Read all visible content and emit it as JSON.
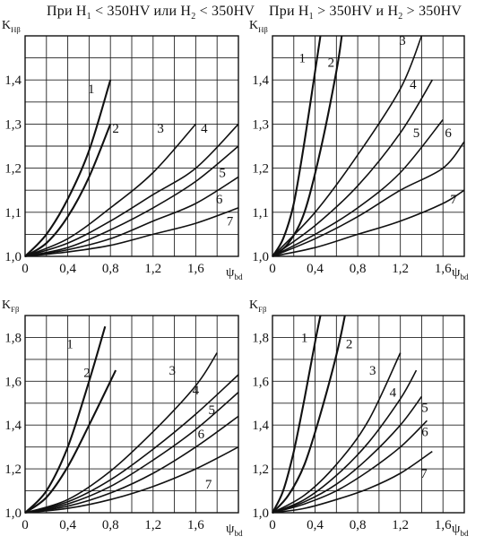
{
  "headers": {
    "left": {
      "pre": "При H",
      "s1": "1",
      "mid": " < 350HV или H",
      "s2": "2",
      "post": " < 350HV"
    },
    "right": {
      "pre": "При H",
      "s1": "1",
      "mid": " > 350HV и H",
      "s2": "2",
      "post": " > 350HV"
    }
  },
  "chart_data": [
    {
      "type": "line",
      "ylabel": {
        "main": "K",
        "sub": "Hβ"
      },
      "xlabel": {
        "main": "ψ",
        "sub": "bd"
      },
      "xlim": [
        0,
        2.0
      ],
      "ylim": [
        1.0,
        1.5
      ],
      "xticks": [
        0,
        0.4,
        0.8,
        1.2,
        1.6
      ],
      "xtick_labels": [
        "0",
        "0,4",
        "0,8",
        "1,2",
        "1,6"
      ],
      "yticks": [
        1.0,
        1.1,
        1.2,
        1.3,
        1.4
      ],
      "ytick_labels": [
        "1,0",
        "1,1",
        "1,2",
        "1,3",
        "1,4"
      ],
      "grid": true,
      "series": [
        {
          "name": "1",
          "points": [
            [
              0,
              1.0
            ],
            [
              0.2,
              1.05
            ],
            [
              0.4,
              1.13
            ],
            [
              0.6,
              1.24
            ],
            [
              0.8,
              1.4
            ]
          ]
        },
        {
          "name": "2",
          "points": [
            [
              0,
              1.0
            ],
            [
              0.2,
              1.03
            ],
            [
              0.4,
              1.09
            ],
            [
              0.6,
              1.18
            ],
            [
              0.8,
              1.3
            ]
          ]
        },
        {
          "name": "3",
          "points": [
            [
              0,
              1.0
            ],
            [
              0.4,
              1.04
            ],
            [
              0.8,
              1.11
            ],
            [
              1.2,
              1.19
            ],
            [
              1.6,
              1.3
            ]
          ]
        },
        {
          "name": "4",
          "points": [
            [
              0,
              1.0
            ],
            [
              0.4,
              1.03
            ],
            [
              0.8,
              1.08
            ],
            [
              1.2,
              1.14
            ],
            [
              1.6,
              1.2
            ],
            [
              2.0,
              1.3
            ]
          ]
        },
        {
          "name": "5",
          "points": [
            [
              0,
              1.0
            ],
            [
              0.4,
              1.02
            ],
            [
              0.8,
              1.06
            ],
            [
              1.2,
              1.11
            ],
            [
              1.6,
              1.17
            ],
            [
              2.0,
              1.25
            ]
          ]
        },
        {
          "name": "6",
          "points": [
            [
              0,
              1.0
            ],
            [
              0.4,
              1.015
            ],
            [
              0.8,
              1.04
            ],
            [
              1.2,
              1.08
            ],
            [
              1.6,
              1.12
            ],
            [
              2.0,
              1.18
            ]
          ]
        },
        {
          "name": "7",
          "points": [
            [
              0,
              1.0
            ],
            [
              0.4,
              1.01
            ],
            [
              0.8,
              1.025
            ],
            [
              1.2,
              1.05
            ],
            [
              1.6,
              1.075
            ],
            [
              2.0,
              1.11
            ]
          ]
        }
      ],
      "curve_labels": [
        {
          "name": "1",
          "at": [
            0.62,
            1.37
          ]
        },
        {
          "name": "2",
          "at": [
            0.85,
            1.28
          ]
        },
        {
          "name": "3",
          "at": [
            1.27,
            1.28
          ]
        },
        {
          "name": "4",
          "at": [
            1.68,
            1.28
          ]
        },
        {
          "name": "5",
          "at": [
            1.85,
            1.18
          ]
        },
        {
          "name": "6",
          "at": [
            1.82,
            1.12
          ]
        },
        {
          "name": "7",
          "at": [
            1.92,
            1.07
          ]
        }
      ]
    },
    {
      "type": "line",
      "ylabel": {
        "main": "K",
        "sub": "Hβ"
      },
      "xlabel": {
        "main": "ψ",
        "sub": "bd"
      },
      "xlim": [
        0,
        1.8
      ],
      "ylim": [
        1.0,
        1.5
      ],
      "xticks": [
        0,
        0.4,
        0.8,
        1.2,
        1.6
      ],
      "xtick_labels": [
        "0",
        "0,4",
        "0,8",
        "1,2",
        "1,6"
      ],
      "yticks": [
        1.0,
        1.1,
        1.2,
        1.3,
        1.4
      ],
      "ytick_labels": [
        "1,0",
        "1,1",
        "1,2",
        "1,3",
        "1,4"
      ],
      "grid": true,
      "series": [
        {
          "name": "1",
          "points": [
            [
              0,
              1.0
            ],
            [
              0.1,
              1.04
            ],
            [
              0.2,
              1.12
            ],
            [
              0.3,
              1.26
            ],
            [
              0.4,
              1.42
            ],
            [
              0.45,
              1.5
            ]
          ]
        },
        {
          "name": "2",
          "points": [
            [
              0,
              1.0
            ],
            [
              0.15,
              1.03
            ],
            [
              0.3,
              1.1
            ],
            [
              0.45,
              1.24
            ],
            [
              0.6,
              1.42
            ],
            [
              0.65,
              1.5
            ]
          ]
        },
        {
          "name": "3",
          "points": [
            [
              0,
              1.0
            ],
            [
              0.4,
              1.1
            ],
            [
              0.8,
              1.23
            ],
            [
              1.2,
              1.38
            ],
            [
              1.4,
              1.5
            ]
          ]
        },
        {
          "name": "4",
          "points": [
            [
              0,
              1.0
            ],
            [
              0.4,
              1.07
            ],
            [
              0.8,
              1.16
            ],
            [
              1.2,
              1.28
            ],
            [
              1.5,
              1.4
            ]
          ]
        },
        {
          "name": "5",
          "points": [
            [
              0,
              1.0
            ],
            [
              0.4,
              1.05
            ],
            [
              0.8,
              1.11
            ],
            [
              1.2,
              1.19
            ],
            [
              1.6,
              1.31
            ]
          ]
        },
        {
          "name": "6",
          "points": [
            [
              0,
              1.0
            ],
            [
              0.4,
              1.04
            ],
            [
              0.8,
              1.09
            ],
            [
              1.2,
              1.15
            ],
            [
              1.6,
              1.2
            ],
            [
              1.8,
              1.26
            ]
          ]
        },
        {
          "name": "7",
          "points": [
            [
              0,
              1.0
            ],
            [
              0.4,
              1.02
            ],
            [
              0.8,
              1.05
            ],
            [
              1.2,
              1.08
            ],
            [
              1.6,
              1.12
            ],
            [
              1.8,
              1.15
            ]
          ]
        }
      ],
      "curve_labels": [
        {
          "name": "1",
          "at": [
            0.28,
            1.44
          ]
        },
        {
          "name": "2",
          "at": [
            0.55,
            1.43
          ]
        },
        {
          "name": "3",
          "at": [
            1.22,
            1.48
          ]
        },
        {
          "name": "4",
          "at": [
            1.32,
            1.38
          ]
        },
        {
          "name": "5",
          "at": [
            1.35,
            1.27
          ]
        },
        {
          "name": "6",
          "at": [
            1.65,
            1.27
          ]
        },
        {
          "name": "7",
          "at": [
            1.7,
            1.12
          ]
        }
      ]
    },
    {
      "type": "line",
      "ylabel": {
        "main": "K",
        "sub": "Fβ"
      },
      "xlabel": {
        "main": "ψ",
        "sub": "bd"
      },
      "xlim": [
        0,
        2.0
      ],
      "ylim": [
        1.0,
        1.9
      ],
      "xticks": [
        0,
        0.4,
        0.8,
        1.2,
        1.6
      ],
      "xtick_labels": [
        "0",
        "0,4",
        "0,8",
        "1,2",
        "1,6"
      ],
      "yticks": [
        1.0,
        1.2,
        1.4,
        1.6,
        1.8
      ],
      "ytick_labels": [
        "1,0",
        "1,2",
        "1,4",
        "1,6",
        "1,8"
      ],
      "grid": true,
      "series": [
        {
          "name": "1",
          "points": [
            [
              0,
              1.0
            ],
            [
              0.2,
              1.1
            ],
            [
              0.4,
              1.3
            ],
            [
              0.6,
              1.6
            ],
            [
              0.75,
              1.85
            ]
          ]
        },
        {
          "name": "2",
          "points": [
            [
              0,
              1.0
            ],
            [
              0.2,
              1.07
            ],
            [
              0.4,
              1.21
            ],
            [
              0.6,
              1.4
            ],
            [
              0.85,
              1.65
            ]
          ]
        },
        {
          "name": "3",
          "points": [
            [
              0,
              1.0
            ],
            [
              0.4,
              1.06
            ],
            [
              0.8,
              1.19
            ],
            [
              1.2,
              1.37
            ],
            [
              1.6,
              1.58
            ],
            [
              1.8,
              1.73
            ]
          ]
        },
        {
          "name": "4",
          "points": [
            [
              0,
              1.0
            ],
            [
              0.4,
              1.05
            ],
            [
              0.8,
              1.15
            ],
            [
              1.2,
              1.29
            ],
            [
              1.6,
              1.45
            ],
            [
              2.0,
              1.63
            ]
          ]
        },
        {
          "name": "5",
          "points": [
            [
              0,
              1.0
            ],
            [
              0.4,
              1.04
            ],
            [
              0.8,
              1.12
            ],
            [
              1.2,
              1.24
            ],
            [
              1.6,
              1.38
            ],
            [
              2.0,
              1.55
            ]
          ]
        },
        {
          "name": "6",
          "points": [
            [
              0,
              1.0
            ],
            [
              0.4,
              1.03
            ],
            [
              0.8,
              1.09
            ],
            [
              1.2,
              1.18
            ],
            [
              1.6,
              1.3
            ],
            [
              2.0,
              1.44
            ]
          ]
        },
        {
          "name": "7",
          "points": [
            [
              0,
              1.0
            ],
            [
              0.4,
              1.02
            ],
            [
              0.8,
              1.06
            ],
            [
              1.2,
              1.12
            ],
            [
              1.6,
              1.2
            ],
            [
              2.0,
              1.3
            ]
          ]
        }
      ],
      "curve_labels": [
        {
          "name": "1",
          "at": [
            0.42,
            1.75
          ]
        },
        {
          "name": "2",
          "at": [
            0.58,
            1.62
          ]
        },
        {
          "name": "3",
          "at": [
            1.38,
            1.63
          ]
        },
        {
          "name": "4",
          "at": [
            1.6,
            1.54
          ]
        },
        {
          "name": "5",
          "at": [
            1.75,
            1.45
          ]
        },
        {
          "name": "6",
          "at": [
            1.65,
            1.34
          ]
        },
        {
          "name": "7",
          "at": [
            1.72,
            1.11
          ]
        }
      ]
    },
    {
      "type": "line",
      "ylabel": {
        "main": "K",
        "sub": "Fβ"
      },
      "xlabel": {
        "main": "ψ",
        "sub": "bd"
      },
      "xlim": [
        0,
        1.8
      ],
      "ylim": [
        1.0,
        1.9
      ],
      "xticks": [
        0,
        0.4,
        0.8,
        1.2,
        1.6
      ],
      "xtick_labels": [
        "0",
        "0,4",
        "0,8",
        "1,2",
        "1,6"
      ],
      "yticks": [
        1.0,
        1.2,
        1.4,
        1.6,
        1.8
      ],
      "ytick_labels": [
        "1,0",
        "1,2",
        "1,4",
        "1,6",
        "1,8"
      ],
      "grid": true,
      "series": [
        {
          "name": "1",
          "points": [
            [
              0,
              1.0
            ],
            [
              0.1,
              1.1
            ],
            [
              0.2,
              1.28
            ],
            [
              0.3,
              1.52
            ],
            [
              0.4,
              1.78
            ],
            [
              0.45,
              1.9
            ]
          ]
        },
        {
          "name": "2",
          "points": [
            [
              0,
              1.0
            ],
            [
              0.15,
              1.08
            ],
            [
              0.3,
              1.22
            ],
            [
              0.45,
              1.45
            ],
            [
              0.6,
              1.72
            ],
            [
              0.68,
              1.9
            ]
          ]
        },
        {
          "name": "3",
          "points": [
            [
              0,
              1.0
            ],
            [
              0.3,
              1.08
            ],
            [
              0.6,
              1.22
            ],
            [
              0.9,
              1.42
            ],
            [
              1.2,
              1.73
            ]
          ]
        },
        {
          "name": "4",
          "points": [
            [
              0,
              1.0
            ],
            [
              0.3,
              1.06
            ],
            [
              0.6,
              1.17
            ],
            [
              0.9,
              1.32
            ],
            [
              1.2,
              1.52
            ],
            [
              1.35,
              1.65
            ]
          ]
        },
        {
          "name": "5",
          "points": [
            [
              0,
              1.0
            ],
            [
              0.3,
              1.05
            ],
            [
              0.6,
              1.13
            ],
            [
              0.9,
              1.25
            ],
            [
              1.2,
              1.4
            ],
            [
              1.4,
              1.53
            ]
          ]
        },
        {
          "name": "6",
          "points": [
            [
              0,
              1.0
            ],
            [
              0.3,
              1.04
            ],
            [
              0.6,
              1.1
            ],
            [
              0.9,
              1.19
            ],
            [
              1.2,
              1.3
            ],
            [
              1.45,
              1.42
            ]
          ]
        },
        {
          "name": "7",
          "points": [
            [
              0,
              1.0
            ],
            [
              0.3,
              1.02
            ],
            [
              0.6,
              1.06
            ],
            [
              0.9,
              1.11
            ],
            [
              1.2,
              1.18
            ],
            [
              1.5,
              1.28
            ]
          ]
        }
      ],
      "curve_labels": [
        {
          "name": "1",
          "at": [
            0.3,
            1.78
          ]
        },
        {
          "name": "2",
          "at": [
            0.72,
            1.75
          ]
        },
        {
          "name": "3",
          "at": [
            0.94,
            1.63
          ]
        },
        {
          "name": "4",
          "at": [
            1.13,
            1.53
          ]
        },
        {
          "name": "5",
          "at": [
            1.43,
            1.46
          ]
        },
        {
          "name": "6",
          "at": [
            1.43,
            1.35
          ]
        },
        {
          "name": "7",
          "at": [
            1.42,
            1.16
          ]
        }
      ]
    }
  ]
}
